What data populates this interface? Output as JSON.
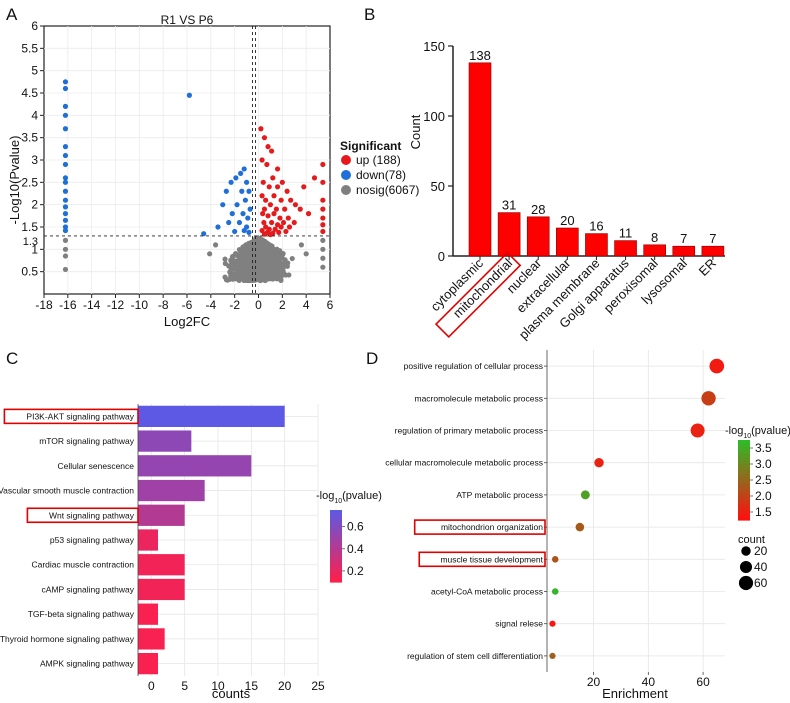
{
  "chart_data": [
    {
      "type": "scatter",
      "panel_letter": "A",
      "title": "R1 VS P6",
      "xlabel": "Log2FC",
      "ylabel": "-Log10(Pvalue)",
      "xlim": [
        -18,
        6
      ],
      "ylim": [
        0,
        6
      ],
      "xticks": [
        "-18",
        "-16",
        "-14",
        "-12",
        "-10",
        "-8",
        "-6",
        "-4",
        "-2",
        "0",
        "2",
        "4",
        "6"
      ],
      "xtick_values": [
        -18,
        -16,
        -14,
        -12,
        -10,
        -8,
        -6,
        -4,
        -2,
        0,
        2,
        4,
        6
      ],
      "yticks": [
        "0.5",
        "1",
        "1.5",
        "2",
        "2.5",
        "3",
        "3.5",
        "4",
        "4.5",
        "5",
        "5.5",
        "6"
      ],
      "ytick_values": [
        0.5,
        1,
        1.5,
        2,
        2.5,
        3,
        3.5,
        4,
        4.5,
        5,
        5.5,
        6
      ],
      "extra_ytick": {
        "label": "1.3",
        "value": 1.3
      },
      "threshold_y": 1.3,
      "threshold_x": [
        -0.5,
        -0.25
      ],
      "legend_title": "Significant",
      "legend": [
        {
          "label": "up (188)",
          "color": "#e41a1c"
        },
        {
          "label": "down(78)",
          "color": "#1f6fd6"
        },
        {
          "label": "nosig(6067)",
          "color": "#7f7f7f"
        }
      ],
      "series": [
        {
          "name": "up",
          "color": "#e41a1c",
          "points": [
            [
              0.2,
              3.7
            ],
            [
              0.5,
              3.5
            ],
            [
              0.8,
              3.3
            ],
            [
              1.1,
              3.2
            ],
            [
              0.3,
              3.0
            ],
            [
              0.7,
              2.9
            ],
            [
              1.6,
              2.8
            ],
            [
              1.2,
              2.6
            ],
            [
              0.4,
              2.5
            ],
            [
              2.0,
              2.5
            ],
            [
              1.6,
              2.4
            ],
            [
              0.9,
              2.4
            ],
            [
              2.4,
              2.3
            ],
            [
              0.3,
              2.2
            ],
            [
              1.3,
              2.2
            ],
            [
              0.6,
              2.1
            ],
            [
              1.9,
              2.1
            ],
            [
              2.7,
              2.1
            ],
            [
              0.5,
              1.9
            ],
            [
              1.0,
              2.0
            ],
            [
              1.5,
              1.9
            ],
            [
              2.2,
              1.9
            ],
            [
              3.1,
              2.0
            ],
            [
              0.35,
              1.8
            ],
            [
              0.8,
              1.75
            ],
            [
              1.3,
              1.8
            ],
            [
              1.8,
              1.7
            ],
            [
              2.5,
              1.7
            ],
            [
              0.45,
              1.6
            ],
            [
              1.1,
              1.6
            ],
            [
              1.6,
              1.55
            ],
            [
              2.1,
              1.6
            ],
            [
              3.0,
              1.6
            ],
            [
              0.6,
              1.5
            ],
            [
              0.9,
              1.45
            ],
            [
              1.4,
              1.45
            ],
            [
              1.9,
              1.5
            ],
            [
              2.6,
              1.5
            ],
            [
              0.3,
              1.42
            ],
            [
              0.75,
              1.38
            ],
            [
              1.2,
              1.36
            ],
            [
              1.7,
              1.38
            ],
            [
              2.3,
              1.4
            ],
            [
              0.5,
              1.34
            ],
            [
              1.0,
              1.33
            ],
            [
              3.5,
              1.9
            ],
            [
              4.2,
              1.8
            ],
            [
              3.8,
              2.4
            ],
            [
              4.7,
              2.6
            ],
            [
              5.4,
              2.9
            ],
            [
              5.4,
              2.5
            ],
            [
              5.4,
              2.1
            ],
            [
              5.4,
              1.9
            ],
            [
              5.4,
              1.7
            ],
            [
              5.4,
              1.55
            ],
            [
              5.4,
              1.4
            ]
          ]
        },
        {
          "name": "down",
          "color": "#1f6fd6",
          "points": [
            [
              -16.2,
              4.75
            ],
            [
              -16.2,
              4.6
            ],
            [
              -16.2,
              4.2
            ],
            [
              -16.2,
              4.0
            ],
            [
              -16.2,
              3.7
            ],
            [
              -16.2,
              3.3
            ],
            [
              -16.2,
              3.1
            ],
            [
              -16.2,
              2.9
            ],
            [
              -16.2,
              2.6
            ],
            [
              -16.2,
              2.5
            ],
            [
              -16.2,
              2.3
            ],
            [
              -16.2,
              2.1
            ],
            [
              -16.2,
              1.95
            ],
            [
              -16.2,
              1.8
            ],
            [
              -16.2,
              1.65
            ],
            [
              -16.2,
              1.5
            ],
            [
              -16.2,
              1.42
            ],
            [
              -5.8,
              4.45
            ],
            [
              -1.2,
              2.8
            ],
            [
              -1.5,
              2.7
            ],
            [
              -1.9,
              2.6
            ],
            [
              -1.0,
              2.5
            ],
            [
              -2.3,
              2.5
            ],
            [
              -1.4,
              2.3
            ],
            [
              -0.8,
              2.3
            ],
            [
              -2.7,
              2.3
            ],
            [
              -1.1,
              2.1
            ],
            [
              -1.8,
              2.0
            ],
            [
              -3.0,
              2.0
            ],
            [
              -0.7,
              1.9
            ],
            [
              -1.3,
              1.8
            ],
            [
              -2.2,
              1.8
            ],
            [
              -0.9,
              1.7
            ],
            [
              -1.6,
              1.6
            ],
            [
              -2.5,
              1.6
            ],
            [
              -1.0,
              1.5
            ],
            [
              -3.4,
              1.5
            ],
            [
              -1.2,
              1.42
            ],
            [
              -2.0,
              1.4
            ],
            [
              -0.8,
              1.38
            ],
            [
              -4.6,
              1.35
            ]
          ]
        },
        {
          "name": "nosig",
          "color": "#7f7f7f",
          "points": [
            [
              -16.2,
              1.2
            ],
            [
              -16.2,
              1.0
            ],
            [
              -16.2,
              0.85
            ],
            [
              -16.2,
              0.55
            ],
            [
              5.4,
              1.2
            ],
            [
              5.4,
              1.0
            ],
            [
              5.4,
              0.8
            ],
            [
              5.4,
              0.6
            ],
            [
              -3.6,
              1.1
            ],
            [
              -4.1,
              0.9
            ],
            [
              3.6,
              1.1
            ],
            [
              4.0,
              0.9
            ]
          ]
        }
      ],
      "nosig_cloud": {
        "x_center": 0.0,
        "x_spread": 3.2,
        "y_min": 0.3,
        "y_max": 1.28,
        "count": 700
      }
    },
    {
      "type": "bar",
      "panel_letter": "B",
      "ylabel": "Count",
      "ylim": [
        0,
        150
      ],
      "yticks": [
        "0",
        "50",
        "100",
        "150"
      ],
      "ytick_values": [
        0,
        50,
        100,
        150
      ],
      "categories": [
        "cytoplasmic",
        "mitochondrial",
        "nuclear",
        "extracellular",
        "plasma membrane",
        "Golgi apparatus",
        "peroxisomal",
        "lysosomal",
        "ER"
      ],
      "values": [
        138,
        31,
        28,
        20,
        16,
        11,
        8,
        7,
        7
      ],
      "value_labels": [
        "138",
        "31",
        "28",
        "20",
        "16",
        "11",
        "8",
        "7",
        "7"
      ],
      "highlighted": [
        "mitochondrial"
      ],
      "color": "#ff0000"
    },
    {
      "type": "bar",
      "orientation": "horizontal",
      "panel_letter": "C",
      "xlabel": "counts",
      "xlim": [
        -2,
        25
      ],
      "xticks": [
        "0",
        "5",
        "10",
        "15",
        "20",
        "25"
      ],
      "xtick_values": [
        0,
        5,
        10,
        15,
        20,
        25
      ],
      "categories": [
        "PI3K-AKT signaling pathway",
        "mTOR signaling pathway",
        "Cellular senescence",
        "Vascular smooth muscle contraction",
        "Wnt signaling pathway",
        "p53 signaling pathway",
        "Cardiac muscle contraction",
        "cAMP signaling pathway",
        "TGF-beta signaling pathway",
        "Thyroid hormone signaling pathway",
        "AMPK signaling pathway"
      ],
      "values": [
        20,
        6,
        15,
        8,
        5,
        1,
        5,
        5,
        1,
        2,
        1
      ],
      "pvalues": [
        0.74,
        0.55,
        0.52,
        0.48,
        0.4,
        0.18,
        0.15,
        0.15,
        0.12,
        0.13,
        0.12
      ],
      "highlighted": [
        "PI3K-AKT signaling pathway",
        "Wnt signaling pathway"
      ],
      "legend_title": "-log10(pvalue)",
      "colorbar_ticks": [
        "0.2",
        "0.4",
        "0.6"
      ],
      "colorbar_values": [
        0.2,
        0.4,
        0.6
      ],
      "colorbar_range": [
        0.1,
        0.75
      ],
      "color_low": "#ff1f4b",
      "color_high": "#5a5ae6"
    },
    {
      "type": "scatter",
      "panel_letter": "D",
      "xlabel": "Enrichment",
      "xlim": [
        3,
        68
      ],
      "xticks": [
        "20",
        "40",
        "60"
      ],
      "xtick_values": [
        20,
        40,
        60
      ],
      "categories": [
        "positive regulation of cellular process",
        "macromolecule metabolic process",
        "regulation of primary metabolic process",
        "cellular macromolecule metabolic process",
        "ATP metabolic process",
        "mitochondrion organization",
        "muscle tissue development",
        "acetyl-CoA metabolic process",
        "signal relese",
        "regulation of stem cell differentiation"
      ],
      "x": [
        65,
        62,
        58,
        22,
        17,
        15,
        6,
        6,
        5,
        5
      ],
      "count": [
        65,
        62,
        58,
        20,
        17,
        15,
        6,
        6,
        5,
        5
      ],
      "pvalue": [
        1.4,
        1.9,
        1.5,
        1.5,
        3.3,
        2.3,
        2.2,
        3.6,
        1.3,
        2.4
      ],
      "highlighted": [
        "mitochondrion organization",
        "muscle tissue development"
      ],
      "legend_title": "-log10(pvalue)",
      "colorbar_ticks": [
        "3.5",
        "3.0",
        "2.5",
        "2.0",
        "1.5"
      ],
      "colorbar_values": [
        3.5,
        3.0,
        2.5,
        2.0,
        1.5
      ],
      "colorbar_range": [
        1.25,
        3.75
      ],
      "color_low": "#ff1010",
      "color_high": "#28c028",
      "size_legend_title": "count",
      "size_legend": [
        {
          "label": "20",
          "value": 20
        },
        {
          "label": "40",
          "value": 40
        },
        {
          "label": "60",
          "value": 60
        }
      ]
    }
  ]
}
